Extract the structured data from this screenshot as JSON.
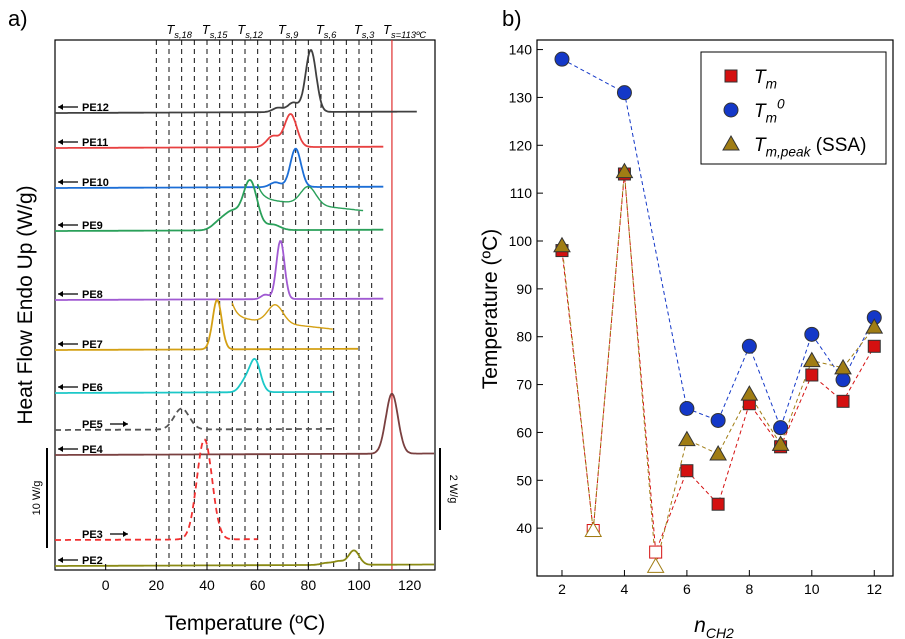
{
  "chart_data": [
    {
      "panel": "a)",
      "type": "line",
      "xlabel": "Temperature (ºC)",
      "ylabel": "Heat Flow Endo Up (W/g)",
      "xlim": [
        -20,
        130
      ],
      "x_ticks": [
        "0",
        "20",
        "40",
        "60",
        "80",
        "100",
        "120"
      ],
      "top_labels": [
        "T_s,18",
        "T_s,15",
        "T_s,12",
        "T_s,9",
        "T_s,6",
        "T_s,3",
        "T_s=113ºC"
      ],
      "ts_lines": [
        20,
        25,
        30,
        35,
        40,
        45,
        50,
        55,
        60,
        65,
        70,
        75,
        80,
        85,
        90,
        95,
        100,
        105
      ],
      "ts_final": 113,
      "scale_bars": [
        "10 W/g",
        "2 W/g"
      ],
      "series": [
        {
          "name": "PE12",
          "color": "#404040",
          "range": [
            -20,
            123
          ],
          "peaks": [
            {
              "x": 81,
              "h": 1.0
            },
            {
              "x": 74,
              "h": 0.15
            },
            {
              "x": 68,
              "h": 0.07
            }
          ]
        },
        {
          "name": "PE11",
          "color": "#e84040",
          "range": [
            -20,
            110
          ],
          "peaks": [
            {
              "x": 73,
              "h": 0.6
            },
            {
              "x": 66,
              "h": 0.2
            }
          ]
        },
        {
          "name": "PE10",
          "color": "#1c6ed6",
          "range": [
            -20,
            110
          ],
          "peaks": [
            {
              "x": 75,
              "h": 0.8
            },
            {
              "x": 67,
              "h": 0.1
            }
          ]
        },
        {
          "name": "PE9",
          "color": "#2aa05a",
          "range": [
            -20,
            110
          ],
          "peaks": [
            {
              "x": 57,
              "h": 0.9
            },
            {
              "x": 50,
              "h": 0.3
            },
            {
              "x": 45,
              "h": 0.15
            },
            {
              "x": 66,
              "h": 0.1
            }
          ],
          "inset_peak": 80
        },
        {
          "name": "PE8",
          "color": "#a05ad2",
          "range": [
            -20,
            110
          ],
          "peaks": [
            {
              "x": 69,
              "h": 1.3
            },
            {
              "x": 63,
              "h": 0.1
            }
          ]
        },
        {
          "name": "PE7",
          "color": "#d4a014",
          "range": [
            -20,
            100
          ],
          "peaks": [
            {
              "x": 44,
              "h": 1.1
            }
          ],
          "inset_peak": 67
        },
        {
          "name": "PE6",
          "color": "#1cc8c8",
          "range": [
            -20,
            90
          ],
          "peaks": [
            {
              "x": 59,
              "h": 0.9
            },
            {
              "x": 55,
              "h": 0.3
            }
          ]
        },
        {
          "name": "PE5",
          "color": "#555555",
          "range": [
            -20,
            90
          ],
          "dashed": true,
          "peaks": [
            {
              "x": 30,
              "h": 0.6
            }
          ]
        },
        {
          "name": "PE4",
          "color": "#7a4040",
          "range": [
            -20,
            130
          ],
          "peaks": [
            {
              "x": 113,
              "h": 1.0
            }
          ]
        },
        {
          "name": "PE3",
          "color": "#f03030",
          "range": [
            -20,
            60
          ],
          "dashed": true,
          "peaks": [
            {
              "x": 39,
              "h": 1.0
            }
          ]
        },
        {
          "name": "PE2",
          "color": "#8a8a14",
          "range": [
            -20,
            130
          ],
          "peaks": [
            {
              "x": 98,
              "h": 0.6
            },
            {
              "x": 92,
              "h": 0.15
            },
            {
              "x": 87,
              "h": 0.08
            }
          ]
        }
      ]
    },
    {
      "panel": "b)",
      "type": "scatter",
      "xlabel": "n_CH2",
      "ylabel": "Temperature (ºC)",
      "xlim": [
        1.2,
        12.6
      ],
      "ylim": [
        30,
        142
      ],
      "x_ticks": [
        2,
        4,
        6,
        8,
        10,
        12
      ],
      "y_ticks": [
        40,
        50,
        60,
        70,
        80,
        90,
        100,
        110,
        120,
        130,
        140
      ],
      "legend_position": "top-right",
      "series": [
        {
          "name": "T_m",
          "marker": "square",
          "color": "#d41010",
          "x": [
            2,
            3,
            4,
            5,
            6,
            7,
            8,
            9,
            10,
            11,
            12
          ],
          "y": [
            98,
            39.5,
            114,
            35,
            52,
            45,
            66,
            57,
            72,
            66.5,
            78
          ],
          "hollow": [
            3,
            5
          ]
        },
        {
          "name": "T_m^0",
          "marker": "circle",
          "color": "#1438c8",
          "x": [
            2,
            4,
            6,
            7,
            8,
            9,
            10,
            11,
            12
          ],
          "y": [
            138,
            131,
            65,
            62.5,
            78,
            61,
            80.5,
            71,
            84
          ]
        },
        {
          "name": "T_m,peak (SSA)",
          "marker": "triangle",
          "color": "#a07d14",
          "x": [
            2,
            3,
            4,
            5,
            6,
            7,
            8,
            9,
            10,
            11,
            12
          ],
          "y": [
            99,
            39.5,
            114.5,
            32,
            58.5,
            55.5,
            68,
            57.5,
            75,
            73.5,
            82
          ],
          "hollow": [
            3,
            5
          ]
        }
      ]
    }
  ]
}
